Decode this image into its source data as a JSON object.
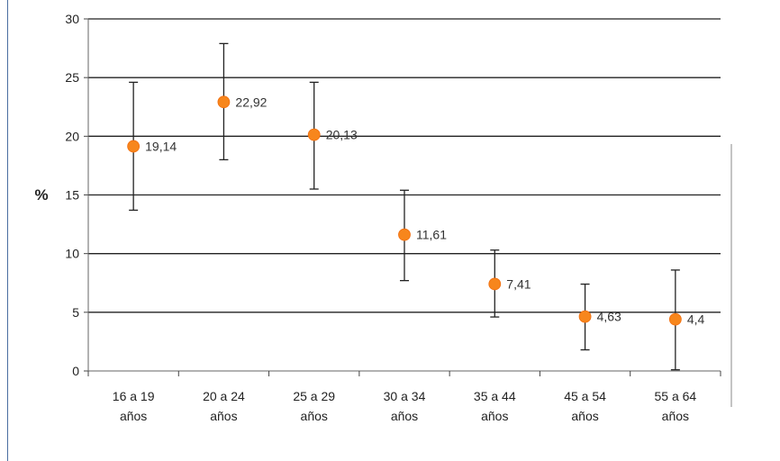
{
  "chart_data": {
    "type": "scatter",
    "ylabel": "%",
    "ylim": [
      0,
      30
    ],
    "yticks": [
      0,
      5,
      10,
      15,
      20,
      25,
      30
    ],
    "categories": [
      [
        "16 a 19",
        "años"
      ],
      [
        "20 a 24",
        "años"
      ],
      [
        "25 a 29",
        "años"
      ],
      [
        "30 a 34",
        "años"
      ],
      [
        "35 a 44",
        "años"
      ],
      [
        "45 a 54",
        "años"
      ],
      [
        "55 a 64",
        "años"
      ]
    ],
    "values": [
      19.14,
      22.92,
      20.13,
      11.61,
      7.41,
      4.63,
      4.4
    ],
    "value_labels": [
      "19,14",
      "22,92",
      "20,13",
      "11,61",
      "7,41",
      "4,63",
      "4,4"
    ],
    "error_low": [
      13.7,
      18.0,
      15.5,
      7.7,
      4.6,
      1.8,
      0.1
    ],
    "error_high": [
      24.6,
      27.9,
      24.6,
      15.4,
      10.3,
      7.4,
      8.6
    ],
    "grid": true,
    "marker_color": "#f7861c",
    "errorbar_color": "#222222"
  }
}
